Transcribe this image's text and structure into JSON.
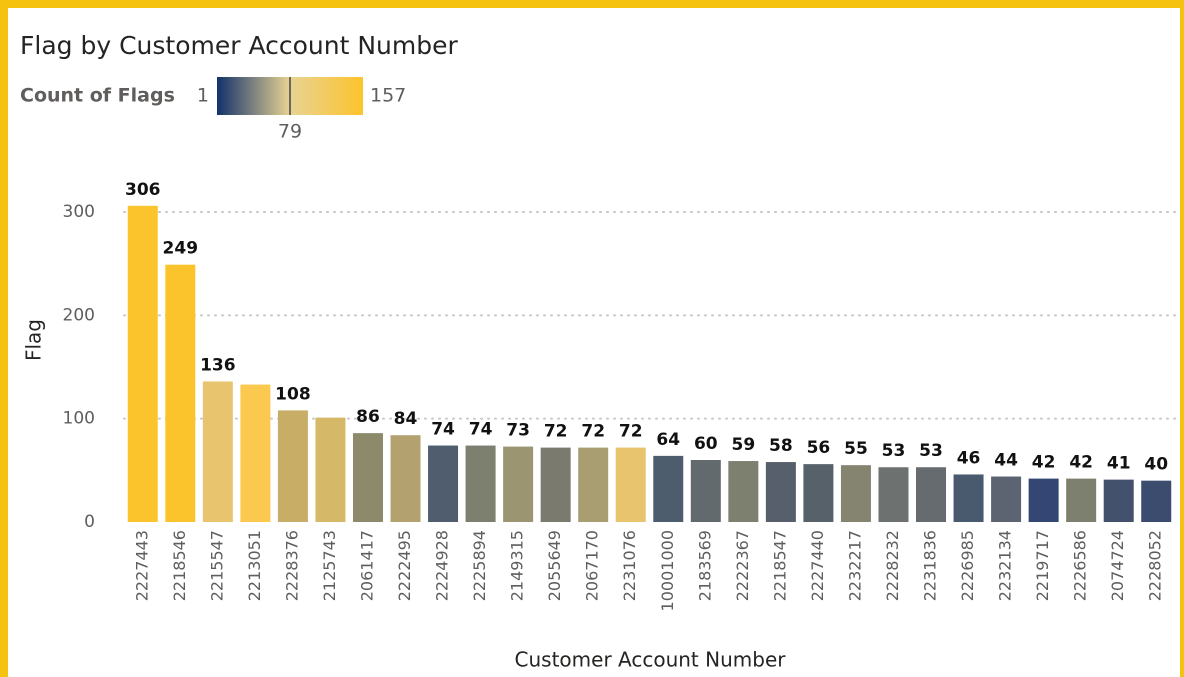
{
  "chart_data": {
    "type": "bar",
    "title": "Flag by Customer Account Number",
    "x_label": "Customer Account Number",
    "y_label": "Flag",
    "legend": {
      "title": "Count of Flags",
      "min": 1,
      "mid": 79,
      "max": 157,
      "colors": [
        "#13316b",
        "#e8d394",
        "#fcc42c"
      ]
    },
    "categories": [
      "2227443",
      "2218546",
      "2215547",
      "2213051",
      "2228376",
      "2125743",
      "2061417",
      "2222495",
      "2224928",
      "2225894",
      "2149315",
      "2055649",
      "2067170",
      "2231076",
      "10001000",
      "2183569",
      "2222367",
      "2218547",
      "2227440",
      "2232217",
      "2228232",
      "2231836",
      "2226985",
      "2232134",
      "2219717",
      "2226586",
      "2074724",
      "2228052"
    ],
    "values": [
      306,
      249,
      136,
      133,
      108,
      101,
      86,
      84,
      74,
      74,
      73,
      72,
      72,
      72,
      64,
      60,
      59,
      58,
      56,
      55,
      53,
      53,
      46,
      44,
      42,
      42,
      41,
      40
    ],
    "value_labels": [
      306,
      249,
      136,
      null,
      108,
      null,
      86,
      84,
      74,
      74,
      73,
      72,
      72,
      72,
      64,
      60,
      59,
      58,
      56,
      55,
      53,
      53,
      46,
      44,
      42,
      42,
      41,
      40
    ],
    "colors": [
      "#fcc42c",
      "#fcc42c",
      "#e8c46e",
      "#fbc94f",
      "#c8ad67",
      "#d6b869",
      "#8c8a6a",
      "#b3a26f",
      "#4f5d6e",
      "#7d7f6f",
      "#9c9571",
      "#7a7b6e",
      "#a89e71",
      "#e8c46e",
      "#4e5d6e",
      "#626a6e",
      "#7d7f6f",
      "#575f6c",
      "#566169",
      "#858471",
      "#6d7270",
      "#656b6e",
      "#4a5a6e",
      "#5b6470",
      "#344774",
      "#7d7f6f",
      "#44516d",
      "#3b4c6f"
    ],
    "ylim": [
      0,
      330
    ],
    "yticks": [
      0,
      100,
      200,
      300
    ],
    "grid": true
  }
}
